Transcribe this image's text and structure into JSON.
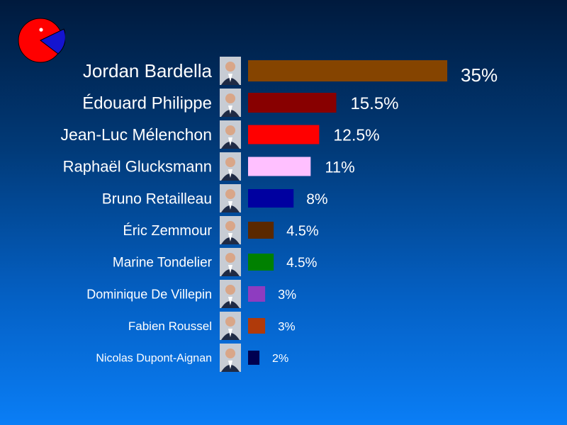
{
  "logo": {
    "icon": "pie-logo-icon",
    "colors": [
      "#ff0000",
      "#1414d0",
      "#ffffff"
    ]
  },
  "chart_data": {
    "type": "bar",
    "orientation": "horizontal",
    "categories": [
      "Jordan Bardella",
      "Édouard Philippe",
      "Jean-Luc Mélenchon",
      "Raphaël Glucksmann",
      "Bruno Retailleau",
      "Éric Zemmour",
      "Marine Tondelier",
      "Dominique De Villepin",
      "Fabien Roussel",
      "Nicolas Dupont-Aignan"
    ],
    "values": [
      35,
      15.5,
      12.5,
      11,
      8,
      4.5,
      4.5,
      3,
      3,
      2
    ],
    "value_labels": [
      "35%",
      "15.5%",
      "12.5%",
      "11%",
      "8%",
      "4.5%",
      "4.5%",
      "3%",
      "3%",
      "2%"
    ],
    "colors": [
      "#854400",
      "#880000",
      "#ff0000",
      "#ffc0ff",
      "#0000a0",
      "#5a2800",
      "#008000",
      "#8e3cc0",
      "#b03a0a",
      "#000050"
    ],
    "photo_icons": [
      "portrait-icon",
      "portrait-icon",
      "portrait-icon",
      "portrait-icon",
      "portrait-icon",
      "portrait-icon",
      "portrait-icon",
      "portrait-icon",
      "portrait-icon",
      "portrait-icon"
    ],
    "unit": "%",
    "grid": false,
    "legend": "none"
  }
}
